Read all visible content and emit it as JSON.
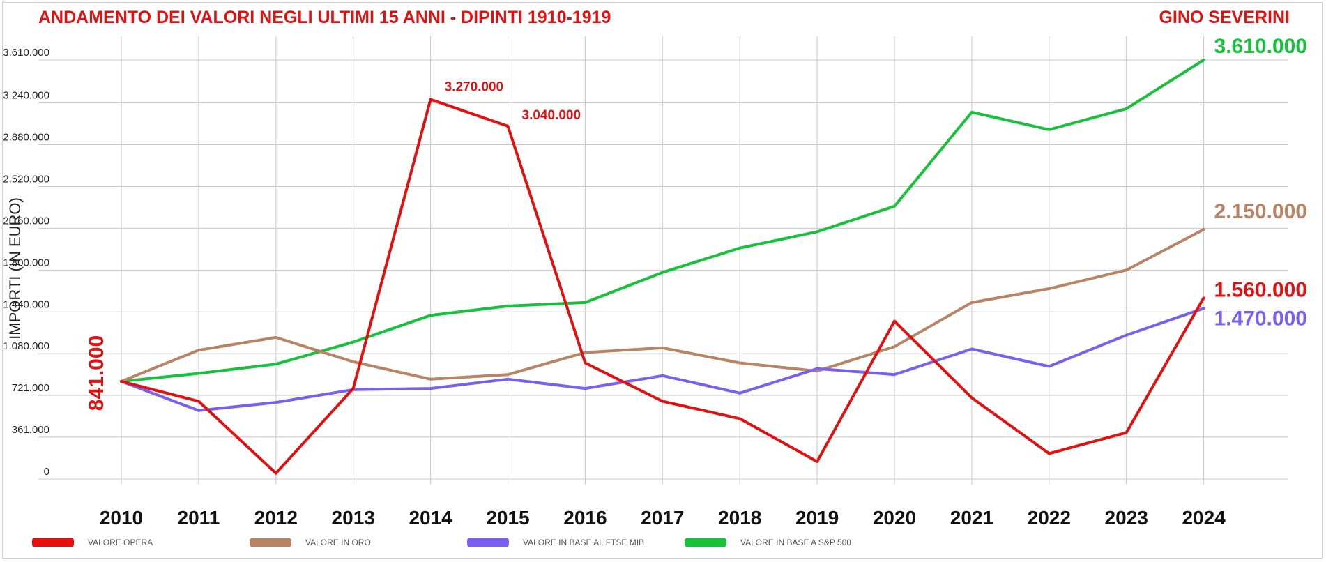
{
  "chart_data": {
    "type": "line",
    "title": "ANDAMENTO DEI VALORI NEGLI ULTIMI 15 ANNI - DIPINTI 1910-1919",
    "subtitle": "GINO SEVERINI",
    "ylabel": "IMPORTI (IN EURO)",
    "xlabel": "",
    "categories": [
      "2010",
      "2011",
      "2012",
      "2013",
      "2014",
      "2015",
      "2016",
      "2017",
      "2018",
      "2019",
      "2020",
      "2021",
      "2022",
      "2023",
      "2024"
    ],
    "y_ticks": [
      {
        "value": 0,
        "label": "0"
      },
      {
        "value": 361000,
        "label": "361.000"
      },
      {
        "value": 721000,
        "label": "721.000"
      },
      {
        "value": 1080000,
        "label": "1.080.000"
      },
      {
        "value": 1440000,
        "label": "1.440.000"
      },
      {
        "value": 1800000,
        "label": "1.800.000"
      },
      {
        "value": 2160000,
        "label": "2.160.000"
      },
      {
        "value": 2520000,
        "label": "2.520.000"
      },
      {
        "value": 2880000,
        "label": "2.880.000"
      },
      {
        "value": 3240000,
        "label": "3.240.000"
      },
      {
        "value": 3610000,
        "label": "3.610.000"
      }
    ],
    "ylim": [
      0,
      3610000
    ],
    "grid": true,
    "legend_position": "bottom",
    "series": [
      {
        "name": "VALORE OPERA",
        "color": "#e31010",
        "values": [
          841000,
          670000,
          50000,
          780000,
          3270000,
          3040000,
          1000000,
          670000,
          520000,
          150000,
          1360000,
          700000,
          220000,
          400000,
          1560000
        ]
      },
      {
        "name": "VALORE IN ORO",
        "color": "#b98465",
        "values": [
          841000,
          1110000,
          1220000,
          1010000,
          860000,
          900000,
          1090000,
          1130000,
          1000000,
          930000,
          1140000,
          1520000,
          1640000,
          1800000,
          2150000
        ]
      },
      {
        "name": "VALORE IN BASE AL FTSE MIB",
        "color": "#7b5ff0",
        "values": [
          841000,
          590000,
          660000,
          770000,
          780000,
          860000,
          780000,
          890000,
          740000,
          950000,
          900000,
          1120000,
          970000,
          1240000,
          1470000
        ]
      },
      {
        "name": "VALORE IN BASE A S&P 500",
        "color": "#17c23a",
        "values": [
          841000,
          910000,
          990000,
          1180000,
          1410000,
          1490000,
          1520000,
          1780000,
          1990000,
          2130000,
          2350000,
          3160000,
          3010000,
          3190000,
          3610000
        ]
      }
    ],
    "annotations": [
      {
        "text": "3.270.000",
        "series": 0,
        "index": 4,
        "color": "#e31010",
        "size": "small"
      },
      {
        "text": "3.040.000",
        "series": 0,
        "index": 5,
        "color": "#e31010",
        "size": "small"
      },
      {
        "text": "841.000",
        "series": 0,
        "index": 0,
        "color": "#e31010",
        "size": "large-vertical"
      },
      {
        "text": "3.610.000",
        "series": 3,
        "index": 14,
        "color": "#17c23a",
        "size": "large"
      },
      {
        "text": "2.150.000",
        "series": 1,
        "index": 14,
        "color": "#b98465",
        "size": "large"
      },
      {
        "text": "1.560.000",
        "series": 0,
        "index": 14,
        "color": "#e31010",
        "size": "large"
      },
      {
        "text": "1.470.000",
        "series": 2,
        "index": 14,
        "color": "#7b5ff0",
        "size": "large"
      }
    ]
  },
  "colors": {
    "title": "#e31010",
    "grid": "#c8c8c8",
    "axis_text": "#222222"
  }
}
